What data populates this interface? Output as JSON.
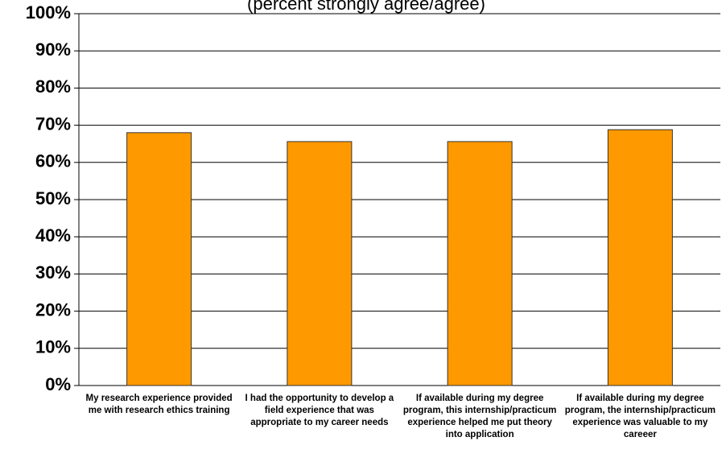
{
  "chart_data": {
    "type": "bar",
    "subtitle": "(percent strongly agree/agree)",
    "categories": [
      "My research experience provided me with research ethics training",
      "I had the opportunity to develop a field experience that was appropriate to my career needs",
      "If available during my degree program, this internship/practicum experience helped me put theory into application",
      "If available during my degree program, the internship/practicum experience was valuable to my careeer"
    ],
    "values": [
      68,
      65.6,
      65.6,
      68.8
    ],
    "color": "#ff9900",
    "ylim": [
      0,
      100
    ],
    "yticks": [
      {
        "value": 0,
        "label": "0%"
      },
      {
        "value": 10,
        "label": "10%"
      },
      {
        "value": 20,
        "label": "20%"
      },
      {
        "value": 30,
        "label": "30%"
      },
      {
        "value": 40,
        "label": "40%"
      },
      {
        "value": 50,
        "label": "50%"
      },
      {
        "value": 60,
        "label": "60%"
      },
      {
        "value": 70,
        "label": "70%"
      },
      {
        "value": 80,
        "label": "80%"
      },
      {
        "value": 90,
        "label": "90%"
      },
      {
        "value": 100,
        "label": "100%"
      }
    ],
    "grid": true
  }
}
